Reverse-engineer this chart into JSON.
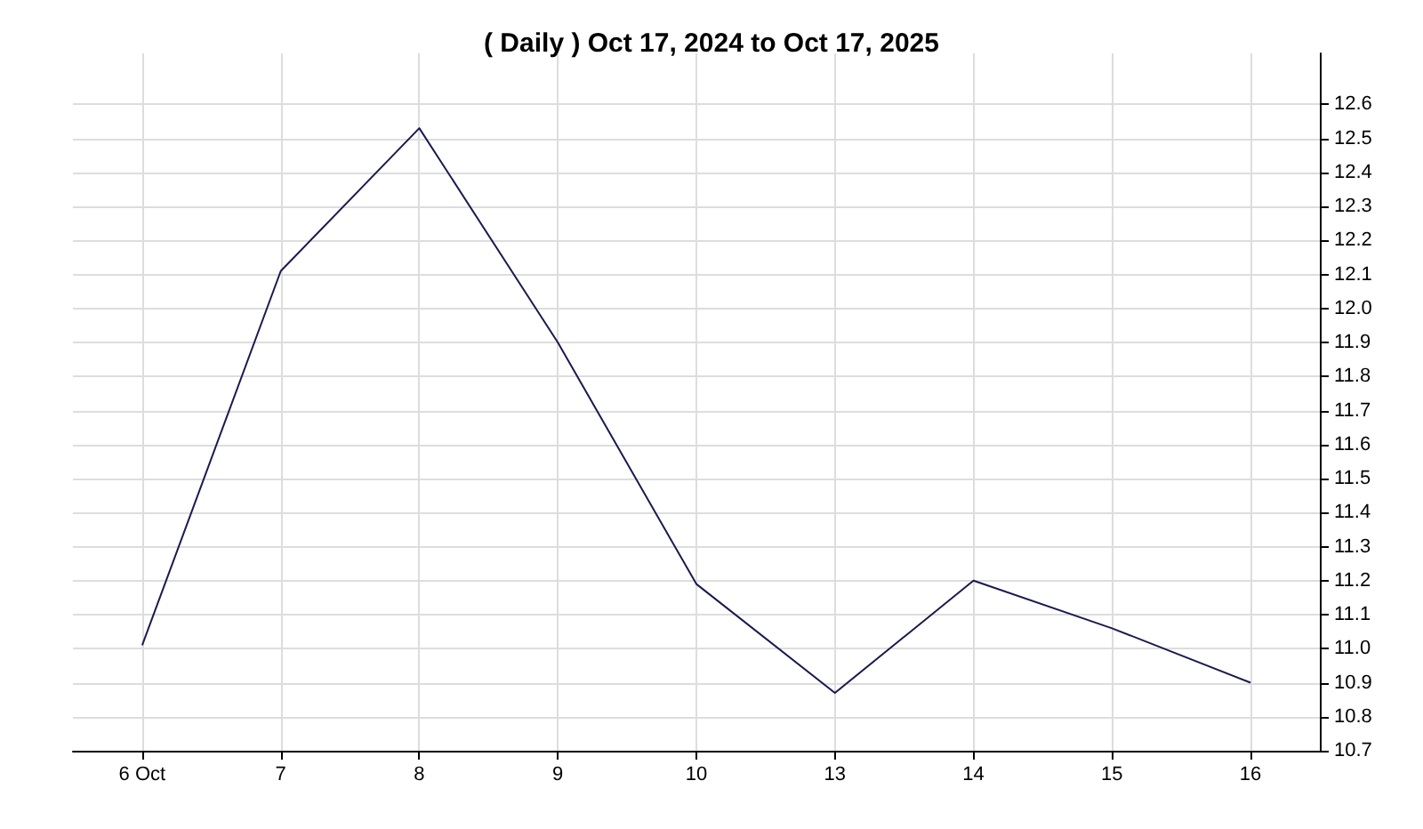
{
  "chart_data": {
    "type": "line",
    "title": "( Daily ) Oct 17, 2024 to Oct 17, 2025",
    "categories": [
      "6 Oct",
      "7",
      "8",
      "9",
      "10",
      "13",
      "14",
      "15",
      "16"
    ],
    "series": [
      {
        "color": "#1a1a50",
        "values": [
          11.01,
          12.11,
          12.53,
          11.9,
          11.19,
          10.87,
          11.2,
          11.06,
          10.9
        ]
      }
    ],
    "ylim": [
      10.7,
      12.75
    ],
    "yticks": [
      10.7,
      10.8,
      10.9,
      {
        "value": 11,
        "label": "11.0"
      },
      11.1,
      11.2,
      11.3,
      11.4,
      11.5,
      11.6,
      11.7,
      11.8,
      11.9,
      {
        "value": 12,
        "label": "12.0"
      },
      12.1,
      12.2,
      12.3,
      12.4,
      12.5,
      12.6
    ],
    "grid": true,
    "marker": "none"
  }
}
